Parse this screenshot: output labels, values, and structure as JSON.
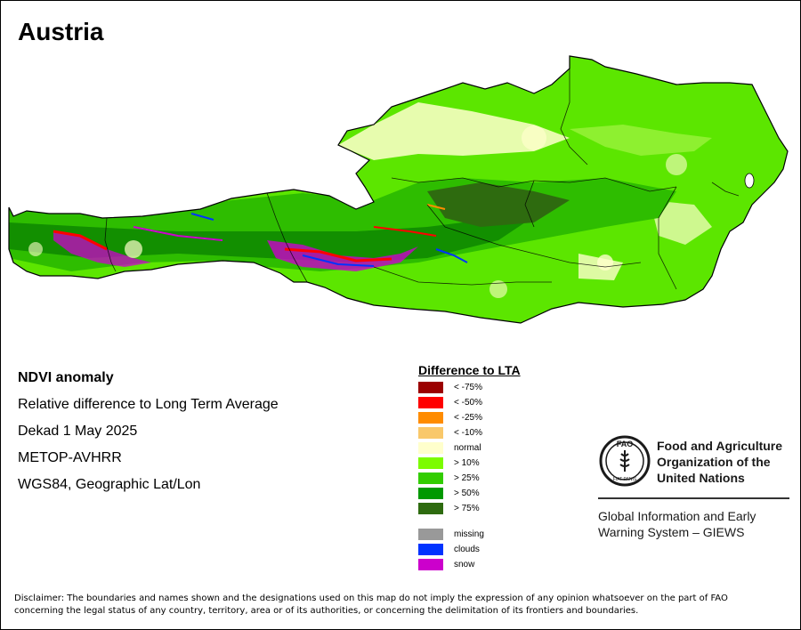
{
  "title": "Austria",
  "info": {
    "product": "NDVI anomaly",
    "description": "Relative difference to Long Term Average",
    "date": "Dekad 1 May 2025",
    "sensor": "METOP-AVHRR",
    "projection": "WGS84, Geographic Lat/Lon"
  },
  "legend": {
    "title": "Difference to LTA",
    "classes": [
      {
        "label": "< -75%",
        "color": "#9b0000"
      },
      {
        "label": "< -50%",
        "color": "#ff0000"
      },
      {
        "label": "< -25%",
        "color": "#ff8c00"
      },
      {
        "label": "< -10%",
        "color": "#f9c86a"
      },
      {
        "label": "normal",
        "color": "#ffffcc"
      },
      {
        "label": "> 10%",
        "color": "#7cfc00"
      },
      {
        "label": "> 25%",
        "color": "#32cd00"
      },
      {
        "label": "> 50%",
        "color": "#009900"
      },
      {
        "label": "> 75%",
        "color": "#2e6b0f"
      }
    ],
    "extra": [
      {
        "label": "missing",
        "color": "#999999"
      },
      {
        "label": "clouds",
        "color": "#0033ff"
      },
      {
        "label": "snow",
        "color": "#cc00cc"
      }
    ]
  },
  "logo": {
    "emblem_text": "FIAT PANIS",
    "emblem_letters": "FAO",
    "org_name": "Food and Agriculture Organization of the United Nations",
    "system_name": "Global Information and Early Warning System – GIEWS"
  },
  "disclaimer": "Disclaimer: The boundaries and names shown and the designations used on this map do not imply the expression of any opinion whatsoever on the part of FAO concerning the legal status of any country, territory, area or of its authorities, or concerning the delimitation of its frontiers and boundaries."
}
